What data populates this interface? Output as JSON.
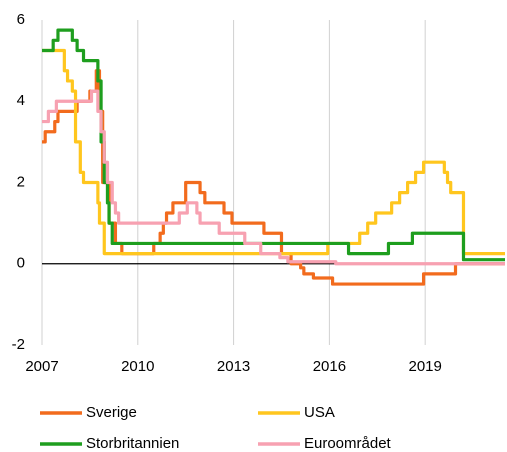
{
  "chart_data": {
    "type": "line",
    "step": "post",
    "grid": "x",
    "legend": "bottom",
    "xlim": [
      2007,
      2021.5
    ],
    "xticks": [
      2007,
      2010,
      2013,
      2016,
      2019
    ],
    "ylim": [
      -2,
      6
    ],
    "yticks": [
      -2,
      0,
      2,
      4,
      6
    ],
    "series": [
      {
        "name": "Sverige",
        "color": "#f26b1d",
        "x": [
          2007.0,
          2007.1,
          2007.4,
          2007.5,
          2008.1,
          2008.5,
          2008.7,
          2008.8,
          2008.9,
          2009.1,
          2009.3,
          2009.5,
          2010.5,
          2010.7,
          2010.8,
          2010.9,
          2011.1,
          2011.5,
          2011.95,
          2012.1,
          2012.7,
          2012.95,
          2013.95,
          2014.5,
          2014.8,
          2015.1,
          2015.2,
          2015.5,
          2016.1,
          2018.95,
          2019.95,
          2021.5
        ],
        "values": [
          3.0,
          3.25,
          3.5,
          3.75,
          4.0,
          4.25,
          4.75,
          3.75,
          2.0,
          1.0,
          0.5,
          0.25,
          0.5,
          0.75,
          1.0,
          1.25,
          1.5,
          2.0,
          1.75,
          1.5,
          1.25,
          1.0,
          0.75,
          0.25,
          0.0,
          -0.1,
          -0.25,
          -0.35,
          -0.5,
          -0.25,
          0.0,
          0.0
        ]
      },
      {
        "name": "USA",
        "color": "#ffc61e",
        "x": [
          2007.0,
          2007.7,
          2007.8,
          2007.95,
          2008.05,
          2008.2,
          2008.3,
          2008.75,
          2008.8,
          2008.95,
          2015.95,
          2016.95,
          2017.2,
          2017.45,
          2017.95,
          2018.2,
          2018.45,
          2018.7,
          2018.95,
          2019.6,
          2019.7,
          2019.8,
          2020.2,
          2021.5
        ],
        "values": [
          5.25,
          4.75,
          4.5,
          4.25,
          3.0,
          2.25,
          2.0,
          1.5,
          1.0,
          0.25,
          0.5,
          0.75,
          1.0,
          1.25,
          1.5,
          1.75,
          2.0,
          2.25,
          2.5,
          2.25,
          2.0,
          1.75,
          0.25,
          0.25
        ]
      },
      {
        "name": "Storbritannien",
        "color": "#1e9e1e",
        "x": [
          2007.0,
          2007.35,
          2007.5,
          2007.95,
          2008.1,
          2008.3,
          2008.75,
          2008.85,
          2008.95,
          2009.05,
          2009.1,
          2009.2,
          2016.6,
          2017.85,
          2018.6,
          2020.2,
          2021.5
        ],
        "values": [
          5.25,
          5.5,
          5.75,
          5.5,
          5.25,
          5.0,
          4.5,
          3.0,
          2.0,
          1.5,
          1.0,
          0.5,
          0.25,
          0.5,
          0.75,
          0.1,
          0.1
        ]
      },
      {
        "name": "Euroområdet",
        "color": "#f7a1b1",
        "x": [
          2007.0,
          2007.2,
          2007.45,
          2008.55,
          2008.75,
          2008.85,
          2008.95,
          2009.05,
          2009.2,
          2009.3,
          2009.4,
          2011.3,
          2011.55,
          2011.85,
          2011.95,
          2012.55,
          2013.35,
          2013.85,
          2014.45,
          2014.7,
          2016.2,
          2021.5
        ],
        "values": [
          3.5,
          3.75,
          4.0,
          4.25,
          3.75,
          3.25,
          2.5,
          2.0,
          1.5,
          1.25,
          1.0,
          1.25,
          1.5,
          1.25,
          1.0,
          0.75,
          0.5,
          0.25,
          0.15,
          0.05,
          0.0,
          0.0
        ]
      }
    ]
  }
}
